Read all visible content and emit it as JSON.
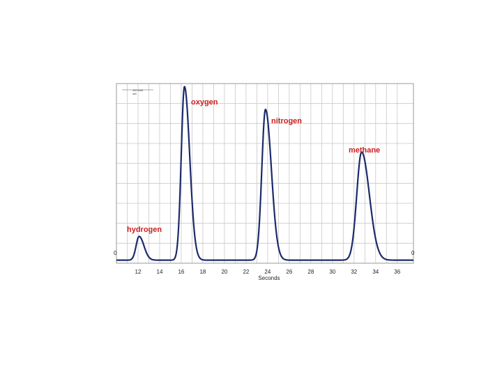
{
  "chart_data": {
    "type": "line",
    "title": "",
    "xlabel": "Seconds",
    "ylabel": "",
    "xlim": [
      10,
      37.5
    ],
    "ylim": [
      -0.1,
      5.8
    ],
    "x_ticks": [
      12,
      14,
      16,
      18,
      20,
      22,
      24,
      26,
      28,
      30,
      32,
      34,
      36
    ],
    "y_tick_left": "0",
    "y_tick_right": "0",
    "grid": true,
    "legend_lines": [
      "100 hvol",
      "uM"
    ],
    "series": [
      {
        "color": "#1c2a6b",
        "peaks": [
          {
            "label": "hydrogen",
            "x": 12.1,
            "height": 0.78,
            "width": 0.28
          },
          {
            "label": "oxygen",
            "x": 16.3,
            "height": 5.7,
            "width": 0.3
          },
          {
            "label": "nitrogen",
            "x": 23.8,
            "height": 4.95,
            "width": 0.34
          },
          {
            "label": "methane",
            "x": 32.7,
            "height": 3.55,
            "width": 0.45
          }
        ]
      }
    ]
  }
}
